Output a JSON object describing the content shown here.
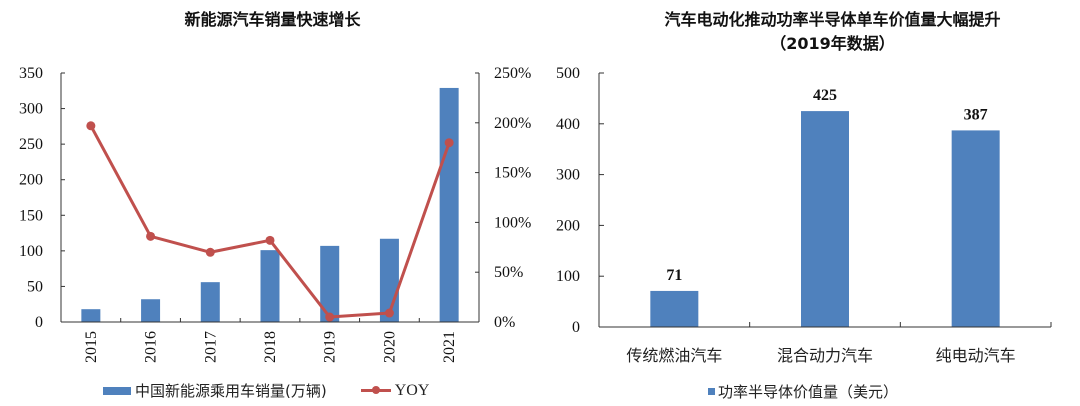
{
  "left_chart": {
    "title": "新能源汽车销量快速增长",
    "y_left_ticks": [
      "0",
      "50",
      "100",
      "150",
      "200",
      "250",
      "300",
      "350"
    ],
    "y_right_ticks": [
      "0%",
      "50%",
      "100%",
      "150%",
      "200%",
      "250%"
    ],
    "categories": [
      "2015",
      "2016",
      "2017",
      "2018",
      "2019",
      "2020",
      "2021"
    ],
    "legend": {
      "bar_label": "中国新能源乘用车销量(万辆)",
      "line_label": "YOY"
    },
    "colors": {
      "bar": "#4f81bd",
      "line": "#c0504d",
      "axis": "#333333"
    }
  },
  "right_chart": {
    "title_line1": "汽车电动化推动功率半导体单车价值量大幅提升",
    "title_line2": "（2019年数据）",
    "y_ticks": [
      "0",
      "100",
      "200",
      "300",
      "400",
      "500"
    ],
    "categories": [
      "传统燃油汽车",
      "混合动力汽车",
      "纯电动汽车"
    ],
    "data_labels": [
      "71",
      "425",
      "387"
    ],
    "legend": {
      "bar_label": "功率半导体价值量（美元）"
    },
    "colors": {
      "bar": "#4f81bd",
      "axis": "#333333"
    }
  },
  "chart_data": [
    {
      "type": "bar+line",
      "title": "新能源汽车销量快速增长",
      "categories": [
        "2015",
        "2016",
        "2017",
        "2018",
        "2019",
        "2020",
        "2021"
      ],
      "series": [
        {
          "name": "中国新能源乘用车销量(万辆)",
          "type": "bar",
          "axis": "left",
          "values": [
            18,
            32,
            56,
            101,
            107,
            117,
            329
          ]
        },
        {
          "name": "YOY",
          "type": "line",
          "axis": "right",
          "unit": "%",
          "values": [
            197,
            86,
            70,
            82,
            5,
            9,
            180
          ]
        }
      ],
      "xlabel": "",
      "ylabel": "",
      "ylim": [
        0,
        350
      ],
      "y2lim": [
        0,
        250
      ],
      "y_ticks": [
        0,
        50,
        100,
        150,
        200,
        250,
        300,
        350
      ],
      "y2_ticks": [
        "0%",
        "50%",
        "100%",
        "150%",
        "200%",
        "250%"
      ],
      "grid": false,
      "legend_position": "bottom",
      "x_tick_rotation": -90
    },
    {
      "type": "bar",
      "title": "汽车电动化推动功率半导体单车价值量大幅提升（2019年数据）",
      "categories": [
        "传统燃油汽车",
        "混合动力汽车",
        "纯电动汽车"
      ],
      "values": [
        71,
        425,
        387
      ],
      "series_name": "功率半导体价值量（美元）",
      "xlabel": "",
      "ylabel": "",
      "ylim": [
        0,
        500
      ],
      "y_ticks": [
        0,
        100,
        200,
        300,
        400,
        500
      ],
      "grid": false,
      "legend_position": "bottom",
      "data_labels": true
    }
  ]
}
